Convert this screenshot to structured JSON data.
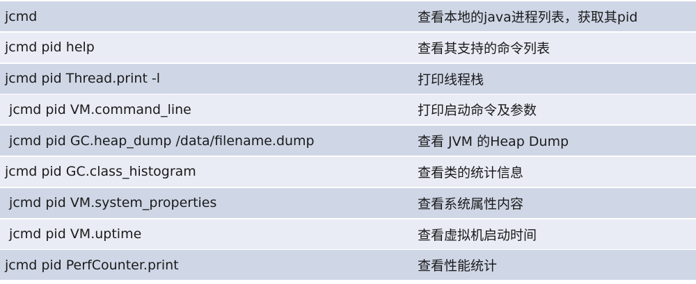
{
  "colors": {
    "row_dark": "#cfd6e6",
    "row_light": "#e9ecf5"
  },
  "rows": [
    {
      "command": "jcmd",
      "description": "查看本地的java进程列表，获取其pid"
    },
    {
      "command": "jcmd pid help",
      "description": "查看其支持的命令列表"
    },
    {
      "command": "jcmd pid Thread.print -l",
      "description": "打印线程栈"
    },
    {
      "command": " jcmd pid VM.command_line",
      "description": "打印启动命令及参数"
    },
    {
      "command": " jcmd pid GC.heap_dump /data/filename.dump",
      "description": "查看 JVM 的Heap Dump"
    },
    {
      "command": "jcmd pid GC.class_histogram",
      "description": "查看类的统计信息"
    },
    {
      "command": " jcmd pid VM.system_properties",
      "description": "查看系统属性内容"
    },
    {
      "command": " jcmd pid VM.uptime",
      "description": "查看虚拟机启动时间"
    },
    {
      "command": "jcmd pid PerfCounter.print",
      "description": "查看性能统计"
    }
  ]
}
